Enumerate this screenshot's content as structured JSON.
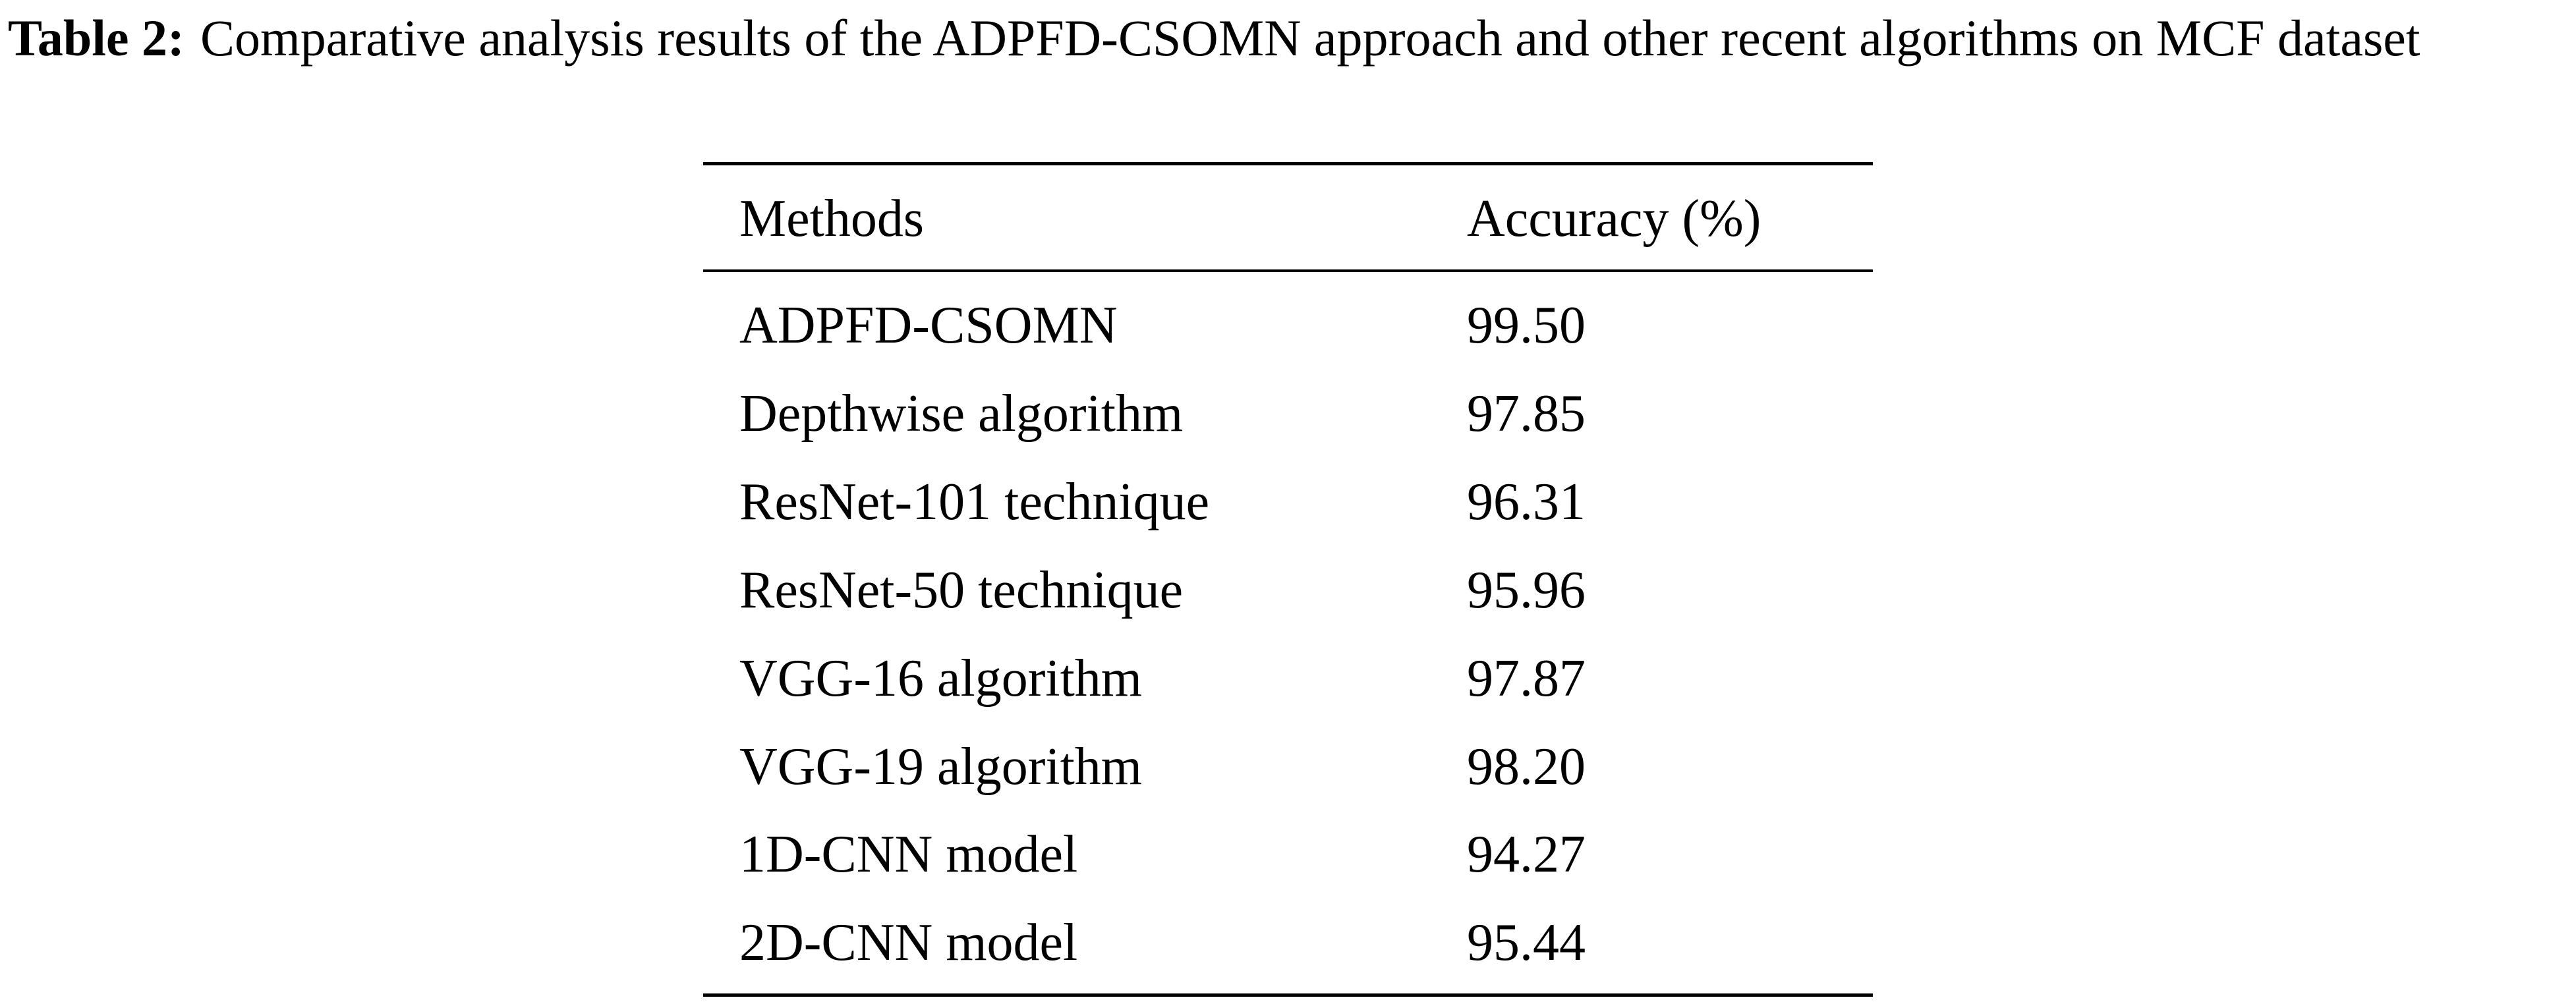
{
  "caption": {
    "label": "Table 2:",
    "text": "Comparative analysis results of the ADPFD-CSOMN approach and other recent algorithms on MCF dataset"
  },
  "table": {
    "header": [
      "Methods",
      "Accuracy (%)"
    ],
    "rows": [
      [
        "ADPFD-CSOMN",
        "99.50"
      ],
      [
        "Depthwise algorithm",
        "97.85"
      ],
      [
        "ResNet-101 technique",
        "96.31"
      ],
      [
        "ResNet-50 technique",
        "95.96"
      ],
      [
        "VGG-16 algorithm",
        "97.87"
      ],
      [
        "VGG-19 algorithm",
        "98.20"
      ],
      [
        "1D-CNN model",
        "94.27"
      ],
      [
        "2D-CNN model",
        "95.44"
      ]
    ]
  }
}
